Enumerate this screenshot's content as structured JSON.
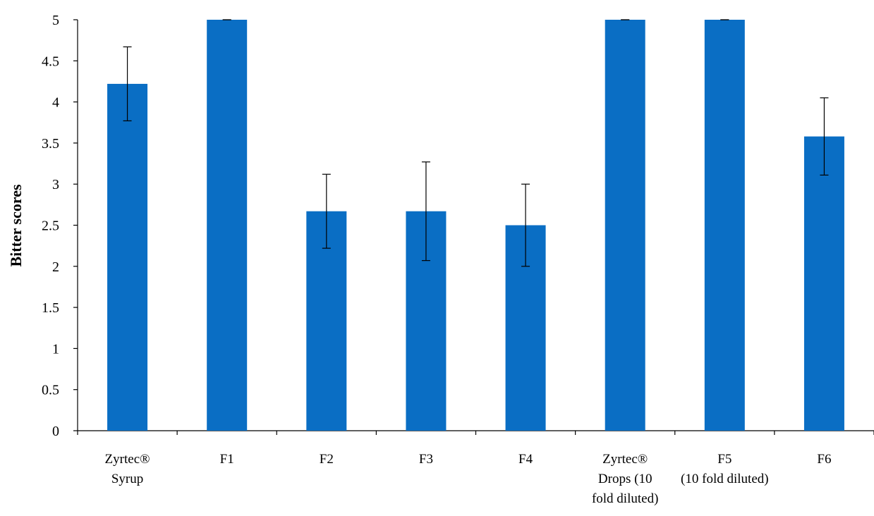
{
  "chart_data": {
    "type": "bar",
    "title": "",
    "xlabel": "",
    "ylabel": "Bitter scores",
    "ylim": [
      0,
      5
    ],
    "yticks": [
      "0",
      "0.5",
      "1",
      "1.5",
      "2",
      "2.5",
      "3",
      "3.5",
      "4",
      "4.5",
      "5"
    ],
    "categories": [
      [
        "Zyrtec®",
        "Syrup"
      ],
      [
        "F1"
      ],
      [
        "F2"
      ],
      [
        "F3"
      ],
      [
        "F4"
      ],
      [
        "Zyrtec®",
        "Drops (10",
        "fold diluted)"
      ],
      [
        "F5",
        "(10 fold diluted)"
      ],
      [
        "F6"
      ]
    ],
    "series": [
      {
        "values": [
          4.22,
          5.0,
          2.67,
          2.67,
          2.5,
          5.0,
          5.0,
          3.58
        ],
        "error": [
          0.45,
          0.0,
          0.45,
          0.6,
          0.5,
          0.0,
          0.0,
          0.47
        ],
        "color": "#0a6ec4"
      }
    ],
    "grid": false,
    "legend": "none"
  }
}
